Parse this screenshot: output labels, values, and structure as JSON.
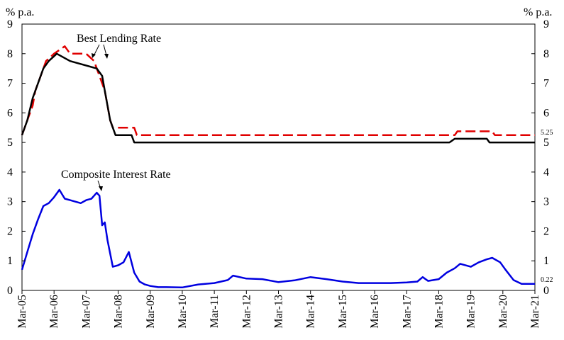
{
  "chart_data": {
    "type": "line",
    "y_unit_left": "% p.a.",
    "y_unit_right": "% p.a.",
    "ylim": [
      0,
      9
    ],
    "y_ticks": [
      "0",
      "1",
      "2",
      "3",
      "4",
      "5",
      "6",
      "7",
      "8",
      "9"
    ],
    "xlim": [
      "2005-03",
      "2021-03"
    ],
    "x_ticks": [
      "Mar-05",
      "Mar-06",
      "Mar-07",
      "Mar-08",
      "Mar-09",
      "Mar-10",
      "Mar-11",
      "Mar-12",
      "Mar-13",
      "Mar-14",
      "Mar-15",
      "Mar-16",
      "Mar-17",
      "Mar-18",
      "Mar-19",
      "Mar-20",
      "Mar-21"
    ],
    "grid": false,
    "series": [
      {
        "name": "Best Lending Rate",
        "color": "#e00000",
        "dash": true,
        "x": [
          "2005-03",
          "2005-05",
          "2005-07",
          "2005-08",
          "2005-10",
          "2005-12",
          "2006-03",
          "2006-07",
          "2006-09",
          "2007-03",
          "2007-06",
          "2007-07",
          "2007-08",
          "2007-10",
          "2007-11",
          "2007-12",
          "2008-01",
          "2008-02",
          "2008-03",
          "2008-09",
          "2008-10",
          "2008-11",
          "2018-09",
          "2018-10",
          "2019-11",
          "2019-12",
          "2021-03"
        ],
        "values": [
          5.25,
          5.75,
          6.25,
          6.75,
          7.25,
          7.75,
          8.0,
          8.25,
          8.0,
          8.0,
          7.75,
          7.5,
          7.25,
          6.75,
          6.25,
          5.75,
          5.5,
          5.5,
          5.5,
          5.5,
          5.25,
          5.25,
          5.25,
          5.375,
          5.375,
          5.25,
          5.25
        ]
      },
      {
        "name": "Best Lending Rate",
        "color": "#000000",
        "dash": false,
        "x": [
          "2005-03",
          "2005-05",
          "2005-07",
          "2005-09",
          "2005-11",
          "2006-01",
          "2006-04",
          "2006-09",
          "2007-07",
          "2007-09",
          "2007-10",
          "2007-11",
          "2007-12",
          "2008-01",
          "2008-02",
          "2008-04",
          "2008-08",
          "2008-09",
          "2018-07",
          "2018-09",
          "2019-09",
          "2019-10",
          "2021-03"
        ],
        "values": [
          5.25,
          5.75,
          6.5,
          7.0,
          7.5,
          7.75,
          8.0,
          7.75,
          7.5,
          7.25,
          6.75,
          6.25,
          5.75,
          5.5,
          5.25,
          5.25,
          5.25,
          5.0,
          5.0,
          5.125,
          5.125,
          5.0,
          5.0
        ]
      },
      {
        "name": "Composite Interest Rate",
        "color": "#0000e0",
        "dash": false,
        "x": [
          "2005-03",
          "2005-05",
          "2005-07",
          "2005-09",
          "2005-11",
          "2006-01",
          "2006-03",
          "2006-05",
          "2006-07",
          "2006-09",
          "2006-11",
          "2007-01",
          "2007-03",
          "2007-05",
          "2007-07",
          "2007-08",
          "2007-09",
          "2007-10",
          "2007-11",
          "2008-01",
          "2008-03",
          "2008-05",
          "2008-07",
          "2008-09",
          "2008-11",
          "2009-01",
          "2009-03",
          "2009-06",
          "2009-09",
          "2010-03",
          "2010-09",
          "2011-03",
          "2011-08",
          "2011-10",
          "2012-03",
          "2012-09",
          "2013-03",
          "2013-09",
          "2014-03",
          "2014-09",
          "2015-03",
          "2015-09",
          "2016-03",
          "2016-09",
          "2017-03",
          "2017-07",
          "2017-09",
          "2017-11",
          "2018-03",
          "2018-06",
          "2018-09",
          "2018-11",
          "2019-03",
          "2019-06",
          "2019-09",
          "2019-11",
          "2020-02",
          "2020-04",
          "2020-07",
          "2020-10",
          "2021-03"
        ],
        "values": [
          0.7,
          1.3,
          1.9,
          2.4,
          2.85,
          2.95,
          3.15,
          3.4,
          3.1,
          3.05,
          3.0,
          2.95,
          3.05,
          3.1,
          3.3,
          3.2,
          2.2,
          2.3,
          1.7,
          0.8,
          0.85,
          0.95,
          1.3,
          0.6,
          0.3,
          0.2,
          0.15,
          0.11,
          0.11,
          0.1,
          0.2,
          0.25,
          0.35,
          0.5,
          0.4,
          0.38,
          0.28,
          0.34,
          0.45,
          0.38,
          0.3,
          0.25,
          0.25,
          0.25,
          0.27,
          0.3,
          0.45,
          0.32,
          0.38,
          0.6,
          0.75,
          0.9,
          0.8,
          0.95,
          1.05,
          1.1,
          0.95,
          0.7,
          0.35,
          0.22,
          0.22
        ]
      }
    ],
    "annotations": [
      {
        "text": "Best Lending Rate",
        "points_to": "2007-06"
      },
      {
        "text": "Composite Interest Rate",
        "points_to": "2007-07"
      }
    ],
    "end_labels": [
      {
        "text": "5.25",
        "value": 5.25
      },
      {
        "text": "0.22",
        "value": 0.22
      }
    ]
  }
}
